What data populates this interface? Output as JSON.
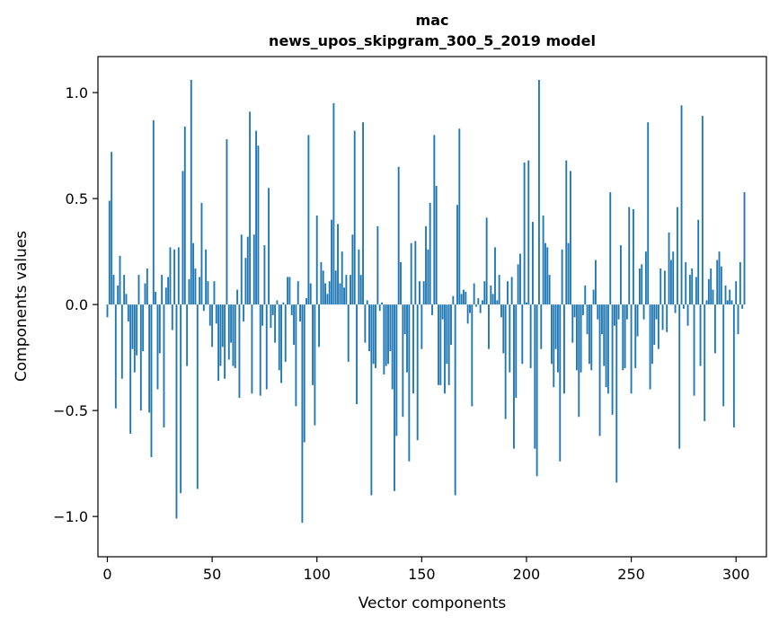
{
  "chart_data": {
    "type": "bar",
    "title": "mac",
    "subtitle": "news_upos_skipgram_300_5_2019 model",
    "xlabel": "Vector components",
    "ylabel": "Components values",
    "xlim": [
      -4.5,
      314.5
    ],
    "ylim": [
      -1.19,
      1.17
    ],
    "xticks": [
      0,
      50,
      100,
      150,
      200,
      250,
      300
    ],
    "xtick_labels": [
      "0",
      "50",
      "100",
      "150",
      "200",
      "250",
      "300"
    ],
    "yticks": [
      -1.0,
      -0.5,
      0.0,
      0.5,
      1.0
    ],
    "ytick_labels": [
      "−1.0",
      "−0.5",
      "0.0",
      "0.5",
      "1.0"
    ],
    "color": "#1f77b4",
    "grid": false,
    "values": [
      -0.06,
      0.49,
      0.72,
      0.14,
      -0.49,
      0.09,
      0.23,
      -0.35,
      0.14,
      0.05,
      -0.08,
      -0.61,
      -0.21,
      -0.32,
      -0.24,
      0.14,
      -0.5,
      -0.22,
      0.1,
      0.17,
      -0.51,
      -0.72,
      0.87,
      0.06,
      -0.4,
      -0.23,
      0.14,
      -0.58,
      0.08,
      0.13,
      0.27,
      -0.12,
      0.26,
      -1.01,
      0.27,
      -0.89,
      0.63,
      0.84,
      -0.29,
      0.12,
      1.06,
      0.29,
      0.17,
      -0.87,
      0.13,
      0.48,
      -0.03,
      0.26,
      0.11,
      -0.1,
      -0.2,
      0.11,
      -0.09,
      -0.36,
      -0.29,
      -0.2,
      -0.35,
      0.78,
      -0.26,
      -0.18,
      -0.29,
      -0.3,
      0.07,
      -0.44,
      0.33,
      -0.08,
      0.22,
      0.32,
      0.91,
      -0.42,
      0.33,
      0.82,
      0.75,
      -0.43,
      -0.1,
      0.28,
      -0.4,
      0.55,
      -0.11,
      -0.05,
      -0.18,
      0.02,
      -0.31,
      -0.37,
      0.01,
      -0.27,
      0.13,
      0.13,
      -0.05,
      -0.19,
      -0.48,
      0.11,
      -0.08,
      -1.03,
      -0.65,
      0.03,
      0.8,
      0.1,
      -0.38,
      -0.57,
      0.42,
      -0.2,
      0.2,
      0.16,
      0.1,
      0.05,
      0.11,
      0.4,
      0.95,
      0.16,
      0.38,
      0.1,
      0.25,
      0.08,
      0.14,
      -0.27,
      0.14,
      0.33,
      0.82,
      -0.47,
      0.26,
      0.14,
      0.86,
      -0.18,
      0.02,
      -0.22,
      -0.9,
      -0.28,
      -0.3,
      0.37,
      -0.03,
      0.01,
      -0.33,
      -0.29,
      -0.28,
      -0.22,
      -0.4,
      -0.88,
      -0.62,
      0.65,
      0.2,
      -0.53,
      -0.14,
      -0.32,
      -0.74,
      0.29,
      -0.42,
      0.3,
      -0.64,
      0.11,
      -0.21,
      0.11,
      0.37,
      0.26,
      0.48,
      -0.05,
      0.8,
      0.56,
      -0.38,
      -0.38,
      -0.07,
      -0.42,
      -0.28,
      -0.38,
      -0.19,
      0.04,
      -0.9,
      0.47,
      0.83,
      0.05,
      0.07,
      0.06,
      -0.09,
      -0.04,
      -0.48,
      0.1,
      -0.01,
      0.03,
      -0.04,
      0.02,
      0.11,
      0.41,
      -0.21,
      0.09,
      0.05,
      0.27,
      0.02,
      0.14,
      -0.06,
      -0.23,
      -0.54,
      0.11,
      -0.32,
      0.13,
      -0.68,
      -0.44,
      0.19,
      0.24,
      -0.28,
      0.67,
      0.01,
      0.68,
      -0.3,
      0.39,
      -0.68,
      -0.81,
      1.06,
      -0.21,
      0.42,
      0.29,
      0.27,
      0.14,
      -0.28,
      -0.39,
      -0.21,
      -0.32,
      -0.74,
      0.26,
      -0.42,
      0.68,
      0.29,
      0.63,
      -0.18,
      -0.06,
      -0.31,
      -0.53,
      -0.32,
      -0.05,
      0.09,
      -0.14,
      -0.28,
      -0.31,
      0.07,
      0.21,
      -0.07,
      -0.62,
      -0.14,
      -0.29,
      -0.39,
      -0.42,
      0.53,
      -0.52,
      -0.1,
      -0.84,
      -0.07,
      0.28,
      -0.31,
      -0.3,
      -0.07,
      0.46,
      -0.42,
      0.45,
      -0.3,
      -0.15,
      0.17,
      0.19,
      -0.07,
      0.25,
      0.86,
      -0.4,
      -0.28,
      -0.19,
      -0.07,
      -0.21,
      0.17,
      -0.12,
      0.16,
      -0.13,
      0.34,
      0.21,
      0.25,
      -0.04,
      0.46,
      -0.68,
      0.94,
      -0.02,
      0.2,
      -0.1,
      0.14,
      0.17,
      -0.43,
      0.13,
      0.4,
      -0.29,
      0.89,
      -0.55,
      0.02,
      0.12,
      0.17,
      0.07,
      -0.23,
      0.21,
      0.25,
      0.18,
      -0.48,
      0.09,
      0.02,
      0.07,
      0.02,
      -0.58,
      0.11,
      -0.14,
      0.2,
      -0.02,
      0.53
    ]
  }
}
